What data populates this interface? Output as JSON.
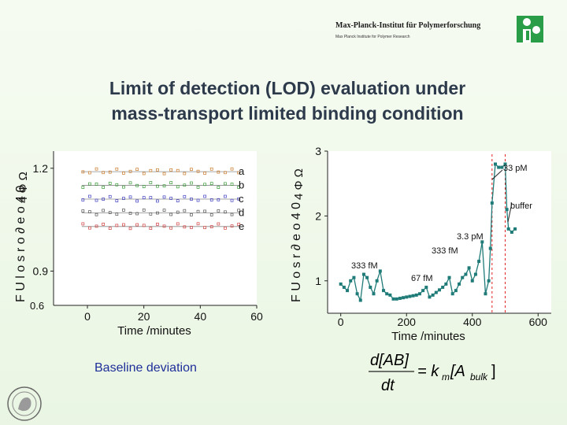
{
  "header": {
    "institute_name": "Max-Planck-Institut für Polymerforschung",
    "institute_subtitle": "Max Planck Institute for Polymer Research"
  },
  "slide": {
    "title_line1": "Limit of detection (LOD) evaluation under",
    "title_line2": "mass-transport limited binding condition",
    "caption": "Baseline deviation"
  },
  "colors": {
    "title": "#2d3a4b",
    "caption": "#1f2f9a",
    "series_main": "#1f7b78",
    "marker_line": "#e02020",
    "logo": "#2a9d48"
  },
  "equation": {
    "lhs_top": "d[AB]",
    "lhs_bottom": "dt",
    "rhs": "= k",
    "rhs_sub": "m",
    "bracket": "[A",
    "bracket_sub": "bulk",
    "bracket_end": "]"
  },
  "chart_data": [
    {
      "type": "scatter",
      "xlabel": "Time /minutes",
      "ylabel_garbled": "F U l o s r o ∂ e o 4 0",
      "ylabel_top_glyphs": "4 Φ Ω",
      "xlim": [
        -12,
        60
      ],
      "ylim": [
        0.8,
        1.25
      ],
      "xticks": [
        0,
        20,
        40,
        60
      ],
      "yticks": [
        {
          "value": 0.9,
          "label": "0.9"
        },
        {
          "value": 1.2,
          "label": "1.2"
        }
      ],
      "bottom_tick_label": "0.6",
      "series": [
        {
          "name": "a",
          "color": "#c97a2a",
          "baseline": 1.19
        },
        {
          "name": "b",
          "color": "#3a9a3a",
          "baseline": 1.15
        },
        {
          "name": "c",
          "color": "#4040c0",
          "baseline": 1.11
        },
        {
          "name": "d",
          "color": "#555555",
          "baseline": 1.07
        },
        {
          "name": "e",
          "color": "#d04040",
          "baseline": 1.03
        }
      ]
    },
    {
      "type": "line",
      "xlabel": "Time /minutes",
      "ylabel_garbled": "F U o s r ∂ e o 4 0",
      "ylabel_top_glyphs": "4 Φ Ω",
      "xlim": [
        -40,
        640
      ],
      "ylim": [
        0.5,
        3.0
      ],
      "xticks": [
        0,
        200,
        400,
        600
      ],
      "yticks": [
        1,
        2,
        3
      ],
      "vertical_markers": [
        460,
        500
      ],
      "annotations": [
        "333 fM",
        "67 fM",
        "333 fM",
        "3.3 pM",
        "33 pM",
        "buffer"
      ],
      "series": [
        {
          "x": [
            0,
            10,
            20,
            30,
            40,
            50,
            60,
            70,
            80,
            90,
            100,
            110,
            120,
            130,
            140,
            150,
            160,
            170,
            180,
            190,
            200,
            210,
            220,
            230,
            240,
            250,
            260,
            270,
            280,
            290,
            300,
            310,
            320,
            330,
            340,
            350,
            360,
            370,
            380,
            390,
            400,
            410,
            420,
            430,
            440,
            450,
            455,
            460,
            470,
            480,
            490,
            500,
            505,
            510,
            520,
            530
          ],
          "values": [
            0.95,
            0.9,
            0.85,
            1.0,
            1.05,
            0.8,
            0.7,
            1.1,
            1.05,
            0.9,
            0.8,
            1.0,
            1.15,
            0.85,
            0.8,
            0.78,
            0.72,
            0.72,
            0.73,
            0.74,
            0.75,
            0.76,
            0.77,
            0.78,
            0.8,
            0.85,
            0.9,
            0.75,
            0.78,
            0.82,
            0.86,
            0.9,
            0.95,
            1.05,
            0.8,
            0.85,
            0.95,
            1.05,
            1.1,
            1.2,
            1.0,
            1.1,
            1.3,
            1.6,
            0.8,
            1.0,
            1.5,
            2.2,
            2.8,
            2.75,
            2.75,
            2.8,
            2.1,
            1.8,
            1.75,
            1.8
          ]
        }
      ]
    }
  ]
}
